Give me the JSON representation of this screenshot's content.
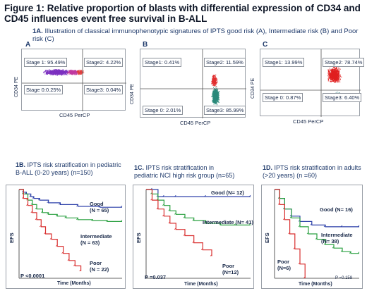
{
  "figure": {
    "label": "Figure 1:",
    "title": "Relative proportion of blasts with differential expression of CD34 and CD45 influences event free survival in B-ALL"
  },
  "section_1a": {
    "label": "1A.",
    "text": "Illustration of classical immunophenotypic signatures of  IPTS good risk  (A), Intermediate risk (B) and Poor risk (C)"
  },
  "flow_panels": [
    {
      "letter": "A",
      "ylabel": "CD34 PE",
      "xlabel": "CD45 PerCP",
      "gates": {
        "stage1": "Stage 1: 95.49%",
        "stage2": "Stage2: 4.22%",
        "stage0": "Stage 0:0.25%",
        "stage3": "Stage3: 0.04%"
      },
      "colors": [
        "#7b2fbf",
        "#c03aa0",
        "#e04040"
      ]
    },
    {
      "letter": "B",
      "ylabel": "CD34 PE",
      "xlabel": "CD45 PerCP",
      "gates": {
        "stage1": "Stage1: 0.41%",
        "stage2": "Stage2: 11.59%",
        "stage0": "Stage 0: 2.01%",
        "stage3": "Stage3: 85.99%"
      },
      "colors": [
        "#2a8a7a",
        "#e03030"
      ]
    },
    {
      "letter": "C",
      "ylabel": "CD34 PE",
      "xlabel": "CD45 PerCP",
      "gates": {
        "stage1": "Stage1: 13.99%",
        "stage2": "Stage2: 78.74%",
        "stage0": "Stage 0: 0.87%",
        "stage3": "Stage3: 6.40%"
      },
      "colors": [
        "#e02020",
        "#3a8a8a"
      ]
    }
  ],
  "chart_data": [
    {
      "type": "line",
      "panel": "1B",
      "title": "IPTS risk stratification in pediatric B-ALL (0-20 years) (n=150)",
      "title_label": "1B.",
      "title_line1": "IPTS risk stratification in pediatric",
      "title_line2": "B-ALL (0-20 years) (n=150)",
      "ylabel": "EFS",
      "xlabel": "Time (Months)",
      "p_value": "P <0.0001",
      "series": [
        {
          "label_lines": [
            "Good",
            "(N = 65)"
          ],
          "color": "#2b3fa8",
          "x": [
            0,
            3,
            5,
            8,
            10,
            14,
            20,
            28,
            40,
            55,
            70
          ],
          "y": [
            1,
            0.97,
            0.95,
            0.92,
            0.9,
            0.88,
            0.85,
            0.83,
            0.81,
            0.8,
            0.8
          ]
        },
        {
          "label_lines": [
            "Intermediate",
            "(N = 63)"
          ],
          "color": "#2aa040",
          "x": [
            0,
            3,
            6,
            9,
            12,
            16,
            20,
            26,
            32,
            40,
            50,
            60,
            70
          ],
          "y": [
            1,
            0.95,
            0.88,
            0.83,
            0.78,
            0.74,
            0.72,
            0.7,
            0.68,
            0.66,
            0.65,
            0.64,
            0.64
          ]
        },
        {
          "label_lines": [
            "Poor",
            "(N = 22)"
          ],
          "color": "#d93030",
          "x": [
            0,
            3,
            6,
            9,
            12,
            15,
            18,
            22,
            26,
            30,
            34,
            38,
            42
          ],
          "y": [
            1,
            0.9,
            0.82,
            0.74,
            0.66,
            0.58,
            0.5,
            0.44,
            0.36,
            0.28,
            0.2,
            0.14,
            0.08
          ]
        }
      ],
      "xlim": [
        0,
        70
      ],
      "ylim": [
        0,
        1
      ]
    },
    {
      "type": "line",
      "panel": "1C",
      "title": "IPTS risk stratification in pediatric NCI high risk group (n=65)",
      "title_label": "1C.",
      "title_line1": "IPTS risk stratification in",
      "title_line2": "pediatric NCI high risk group (n=65)",
      "ylabel": "EFS",
      "xlabel": "Time (Months)",
      "p_value": "P =0.037",
      "series": [
        {
          "label_lines": [
            "Good (N= 12)"
          ],
          "color": "#2b3fa8",
          "x": [
            0,
            4,
            8,
            12,
            20,
            40,
            70
          ],
          "y": [
            1,
            1,
            0.92,
            0.92,
            0.92,
            0.92,
            0.92
          ]
        },
        {
          "label_lines": [
            "Intermediate (N= 41)"
          ],
          "color": "#2aa040",
          "x": [
            0,
            4,
            8,
            12,
            16,
            20,
            26,
            32,
            40,
            50,
            60,
            70
          ],
          "y": [
            1,
            0.95,
            0.88,
            0.82,
            0.76,
            0.72,
            0.68,
            0.65,
            0.62,
            0.6,
            0.6,
            0.6
          ]
        },
        {
          "label_lines": [
            "Poor",
            "(N=12)"
          ],
          "color": "#d93030",
          "x": [
            0,
            4,
            8,
            12,
            16,
            20,
            26,
            32,
            38,
            44
          ],
          "y": [
            1,
            0.88,
            0.78,
            0.7,
            0.62,
            0.55,
            0.48,
            0.4,
            0.32,
            0.25
          ]
        }
      ],
      "xlim": [
        0,
        70
      ],
      "ylim": [
        0,
        1
      ]
    },
    {
      "type": "line",
      "panel": "1D",
      "title": "IPTS risk stratification in adults (>20 years) (n =60)",
      "title_label": "1D.",
      "title_line1": "IPTS risk stratification in adults",
      "title_line2": "(>20 years) (n =60)",
      "ylabel": "EFS",
      "xlabel": "Time (Months)",
      "p_value": "P =0.158",
      "series": [
        {
          "label_lines": [
            "Good (N= 16)"
          ],
          "color": "#2b3fa8",
          "x": [
            0,
            3,
            6,
            10,
            15,
            22,
            30,
            40,
            50
          ],
          "y": [
            1,
            0.9,
            0.78,
            0.7,
            0.64,
            0.6,
            0.58,
            0.58,
            0.58
          ]
        },
        {
          "label_lines": [
            "Intermediate",
            "(N= 38)"
          ],
          "color": "#2aa040",
          "x": [
            0,
            3,
            6,
            10,
            15,
            20,
            25,
            30,
            35,
            40,
            45,
            50
          ],
          "y": [
            1,
            0.9,
            0.78,
            0.68,
            0.58,
            0.5,
            0.44,
            0.38,
            0.34,
            0.3,
            0.28,
            0.28
          ]
        },
        {
          "label_lines": [
            "Poor",
            "(N=6)"
          ],
          "color": "#d93030",
          "x": [
            0,
            3,
            6,
            9,
            12,
            15,
            18
          ],
          "y": [
            1,
            0.83,
            0.66,
            0.5,
            0.33,
            0.16,
            0
          ]
        }
      ],
      "xlim": [
        0,
        50
      ],
      "ylim": [
        0,
        1
      ]
    }
  ]
}
